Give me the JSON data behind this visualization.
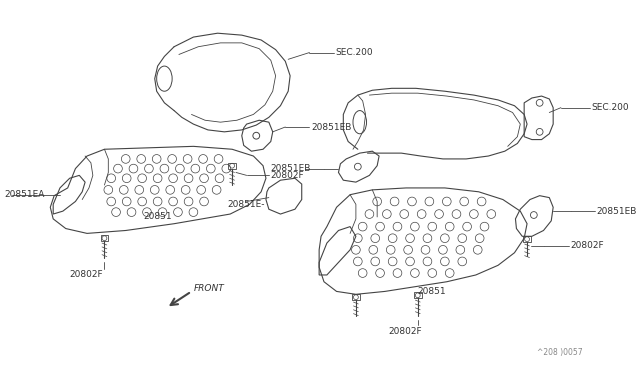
{
  "bg_color": "#ffffff",
  "line_color": "#444444",
  "text_color": "#333333",
  "watermark": "^208 )0057",
  "labels": {
    "SEC200_top": "SEC.200",
    "20851EB_top": "20851EB",
    "20851EA": "20851EA",
    "20851_left": "20851",
    "20802F_left_bottom": "20802F",
    "20802F_center": "20802F",
    "20851E": "20851E-",
    "SEC200_right": "SEC.200",
    "20851EB_right": "20851EB",
    "20802F_right_top": "20802F",
    "20851_right": "20851",
    "20802F_right_bottom": "20802F",
    "FRONT": "FRONT"
  },
  "figsize": [
    6.4,
    3.72
  ],
  "dpi": 100
}
